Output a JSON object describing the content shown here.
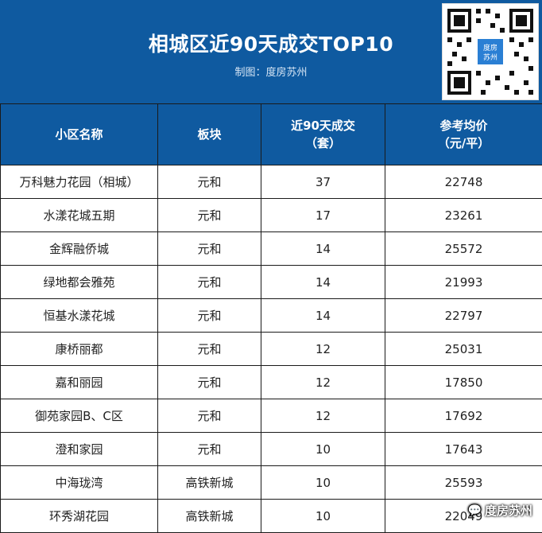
{
  "header": {
    "title": "相城区近90天成交TOP10",
    "subtitle": "制图：度房苏州",
    "qr_badge": "度房苏州"
  },
  "table": {
    "columns": [
      {
        "line1": "小区名称",
        "line2": ""
      },
      {
        "line1": "板块",
        "line2": ""
      },
      {
        "line1": "近90天成交",
        "line2": "（套）"
      },
      {
        "line1": "参考均价",
        "line2": "（元/平）"
      }
    ],
    "rows": [
      [
        "万科魅力花园（相城）",
        "元和",
        "37",
        "22748"
      ],
      [
        "水漾花城五期",
        "元和",
        "17",
        "23261"
      ],
      [
        "金辉融侨城",
        "元和",
        "14",
        "25572"
      ],
      [
        "绿地都会雅苑",
        "元和",
        "14",
        "21993"
      ],
      [
        "恒基水漾花城",
        "元和",
        "14",
        "22797"
      ],
      [
        "康桥丽都",
        "元和",
        "12",
        "25031"
      ],
      [
        "嘉和丽园",
        "元和",
        "12",
        "17850"
      ],
      [
        "御苑家园B、C区",
        "元和",
        "12",
        "17692"
      ],
      [
        "澄和家园",
        "元和",
        "10",
        "17643"
      ],
      [
        "中海珑湾",
        "高铁新城",
        "10",
        "25593"
      ],
      [
        "环秀湖花园",
        "高铁新城",
        "10",
        "22049"
      ]
    ]
  },
  "watermark": {
    "text": "度房苏州"
  },
  "colors": {
    "header_blue": "#0f5aa0",
    "text": "#222222",
    "border": "#1a1a1a"
  }
}
